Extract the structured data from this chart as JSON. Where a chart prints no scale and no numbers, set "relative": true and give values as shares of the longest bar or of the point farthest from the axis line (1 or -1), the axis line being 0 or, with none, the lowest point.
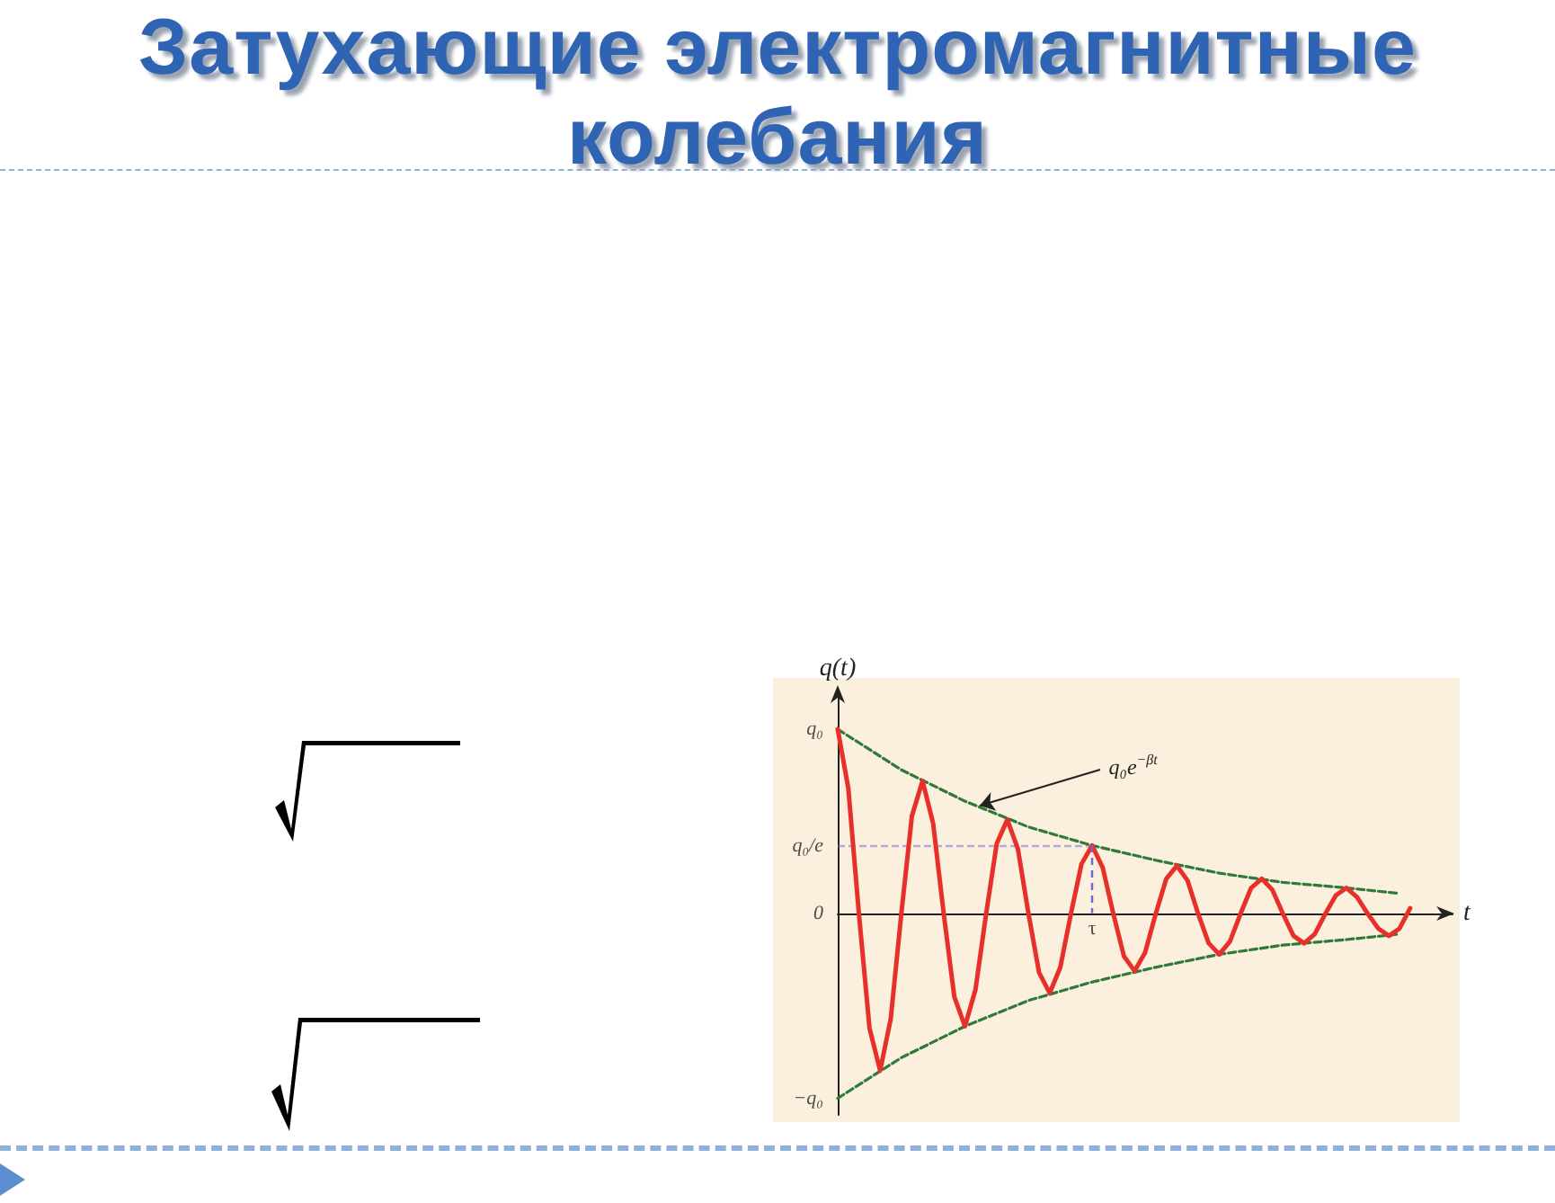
{
  "chart_data": {
    "type": "line",
    "title": "Затухающие электромагнитные колебания",
    "xlabel": "t",
    "ylabel": "q(t)",
    "relative": true,
    "grid": false,
    "marker": "none",
    "categories": [
      null,
      null,
      null,
      null,
      null,
      null,
      null,
      null,
      null,
      null,
      null,
      null,
      null,
      null,
      null,
      null,
      null,
      null,
      null,
      null,
      null,
      null,
      null,
      null,
      null,
      null,
      null,
      null,
      null,
      null,
      null,
      null,
      null,
      null,
      null,
      null,
      null,
      null,
      null,
      null,
      null,
      null,
      null,
      null,
      null,
      null,
      null,
      null,
      null,
      null,
      null,
      null,
      null,
      null,
      null,
      null,
      null,
      null,
      null
    ],
    "series": [
      {
        "color": "#e8302a",
        "line_style": "solid",
        "values": [
          1,
          0.68,
          0,
          -0.62,
          -0.85,
          -0.57,
          0,
          0.53,
          0.72,
          0.49,
          0,
          -0.45,
          -0.61,
          -0.41,
          0,
          0.38,
          0.51,
          0.35,
          0,
          -0.32,
          -0.43,
          -0.29,
          0,
          0.27,
          0.37,
          0.25,
          0,
          -0.23,
          -0.31,
          -0.21,
          0,
          0.19,
          0.26,
          0.18,
          0,
          -0.16,
          -0.22,
          -0.15,
          0,
          0.14,
          0.19,
          0.13,
          0,
          -0.12,
          -0.16,
          -0.11,
          0,
          0.1,
          0.14,
          0.09,
          0,
          -0.08,
          -0.12,
          -0.08,
          0.03,
          null,
          null,
          null,
          null
        ]
      },
      {
        "color": "#2f7a3a",
        "line_style": "dashed",
        "values": [
          1,
          null,
          null,
          null,
          null,
          null,
          0.78,
          null,
          null,
          null,
          null,
          null,
          0.61,
          null,
          null,
          null,
          null,
          null,
          0.47,
          null,
          null,
          null,
          null,
          null,
          0.37,
          null,
          null,
          null,
          null,
          null,
          0.29,
          null,
          null,
          null,
          null,
          null,
          0.22,
          null,
          null,
          null,
          null,
          null,
          0.17,
          null,
          null,
          null,
          null,
          null,
          0.14,
          null,
          null,
          null,
          null,
          0.11,
          null,
          null,
          null,
          null,
          null
        ]
      },
      {
        "color": "#2f7a3a",
        "line_style": "dashed",
        "values": [
          -1,
          null,
          null,
          null,
          null,
          null,
          -0.78,
          null,
          null,
          null,
          null,
          null,
          -0.61,
          null,
          null,
          null,
          null,
          null,
          -0.47,
          null,
          null,
          null,
          null,
          null,
          -0.37,
          null,
          null,
          null,
          null,
          null,
          -0.29,
          null,
          null,
          null,
          null,
          null,
          -0.22,
          null,
          null,
          null,
          null,
          null,
          -0.17,
          null,
          null,
          null,
          null,
          null,
          -0.14,
          null,
          null,
          null,
          null,
          -0.11,
          null,
          null,
          null,
          null,
          null
        ]
      }
    ],
    "ref_lines": [
      {
        "axis": "y",
        "value": 0.368,
        "color": "#6a6ad8",
        "line_style": "dashed"
      }
    ],
    "annotations": [
      "q₀e$^{−βt}$",
      "q₀",
      "q₀/e",
      "0",
      "−q₀",
      "τ"
    ]
  }
}
